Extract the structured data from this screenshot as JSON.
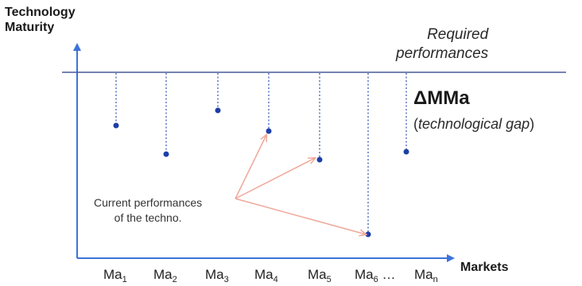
{
  "y_axis_label": [
    "Technology",
    "Maturity"
  ],
  "x_axis_label": "Markets",
  "required_label": [
    "Required",
    "performances"
  ],
  "gap_title": "ΔMMa",
  "gap_subtitle": {
    "open": "(",
    "text": "technological gap",
    "close": ")"
  },
  "current_label": [
    "Current performances",
    "of the techno."
  ],
  "markets": [
    {
      "base": "Ma",
      "sub": "1",
      "suffix": ""
    },
    {
      "base": "Ma",
      "sub": "2",
      "suffix": ""
    },
    {
      "base": "Ma",
      "sub": "3",
      "suffix": ""
    },
    {
      "base": "Ma",
      "sub": "4",
      "suffix": ""
    },
    {
      "base": "Ma",
      "sub": "5",
      "suffix": ""
    },
    {
      "base": "Ma",
      "sub": "6",
      "suffix": " …"
    },
    {
      "base": "Ma",
      "sub": "n",
      "suffix": ""
    }
  ],
  "colors": {
    "axis": "#3d73d9",
    "required_line": "#4a5a9a",
    "dot": "#1f3fa6",
    "dotted": "#2f4fb0",
    "arrow": "#f0a89a"
  }
}
